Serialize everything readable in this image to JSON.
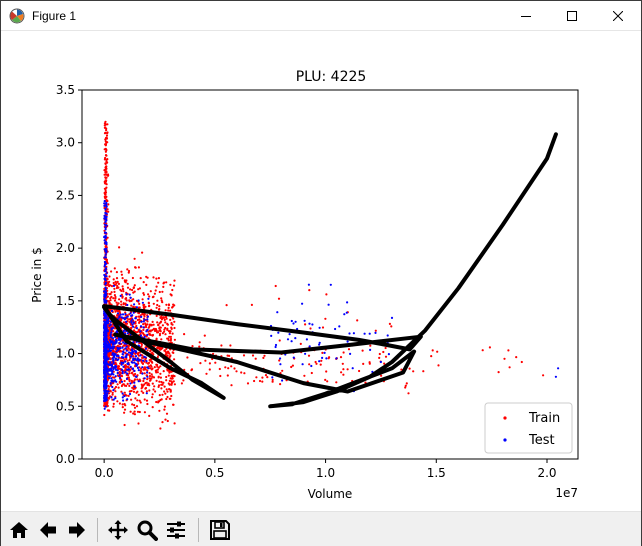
{
  "window": {
    "title": "Figure 1"
  },
  "toolbar": {
    "buttons": [
      {
        "name": "home-icon"
      },
      {
        "name": "back-arrow-icon"
      },
      {
        "name": "forward-arrow-icon"
      },
      {
        "name": "pan-icon"
      },
      {
        "name": "zoom-icon"
      },
      {
        "name": "subplots-icon"
      },
      {
        "name": "save-icon"
      }
    ]
  },
  "chart_data": {
    "type": "scatter",
    "title": "PLU: 4225",
    "xlabel": "Volume",
    "ylabel": "Price in $",
    "x_offset_label": "1e7",
    "xlim": [
      -0.1,
      2.14
    ],
    "ylim": [
      0,
      3.5
    ],
    "xticks": [
      0.0,
      0.5,
      1.0,
      1.5,
      2.0
    ],
    "xtick_labels": [
      "0.0",
      "0.5",
      "1.0",
      "1.5",
      "2.0"
    ],
    "yticks": [
      0.0,
      0.5,
      1.0,
      1.5,
      2.0,
      2.5,
      3.0,
      3.5
    ],
    "ytick_labels": [
      "0.0",
      "0.5",
      "1.0",
      "1.5",
      "2.0",
      "2.5",
      "3.0",
      "3.5"
    ],
    "grid": false,
    "legend_position": "lower-right",
    "series": [
      {
        "name": "Train",
        "color": "#ff0000",
        "marker": "dot"
      },
      {
        "name": "Test",
        "color": "#0000ff",
        "marker": "dot"
      }
    ],
    "fit_line": {
      "color": "#000000",
      "x": [
        0.0,
        0.02,
        0.05,
        0.1,
        0.2,
        0.3,
        0.4,
        0.54,
        0.44,
        0.3,
        0.2,
        0.1,
        0.0,
        0.3,
        0.6,
        0.9,
        1.15,
        1.28,
        1.38,
        1.43,
        1.1,
        0.8,
        0.4,
        0.2,
        0.05,
        0.3,
        0.6,
        0.9,
        1.1,
        1.35,
        1.4,
        1.3,
        1.0,
        0.85,
        0.75,
        0.9,
        1.05,
        1.2,
        1.3,
        1.45,
        1.6,
        1.8,
        2.0,
        2.04
      ],
      "y": [
        1.44,
        1.38,
        1.32,
        1.24,
        1.08,
        0.92,
        0.75,
        0.58,
        0.72,
        0.86,
        0.99,
        1.12,
        1.45,
        1.37,
        1.28,
        1.2,
        1.13,
        1.08,
        1.04,
        1.16,
        1.08,
        1.01,
        1.04,
        1.12,
        1.18,
        1.06,
        0.92,
        0.72,
        0.64,
        0.82,
        1.02,
        0.86,
        0.62,
        0.52,
        0.5,
        0.54,
        0.64,
        0.78,
        0.92,
        1.22,
        1.62,
        2.22,
        2.85,
        3.08
      ]
    }
  }
}
